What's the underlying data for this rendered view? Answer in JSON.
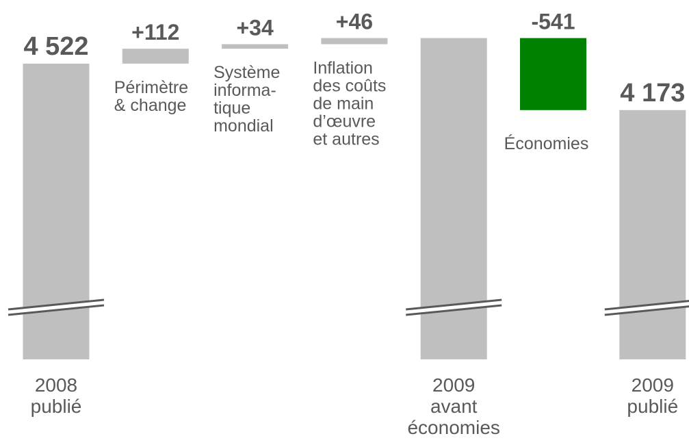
{
  "chart_data": {
    "type": "waterfall",
    "categories": [
      [
        "2008",
        "publié"
      ],
      [
        "Périmètre",
        "& change"
      ],
      [
        "Système",
        "informa-",
        "tique",
        "mondial"
      ],
      [
        "Inflation",
        "des coûts",
        "de main",
        "d’œuvre",
        "et autres"
      ],
      [
        "2009",
        "avant",
        "économies"
      ],
      [
        "Économies"
      ],
      [
        "2009",
        "publié"
      ]
    ],
    "values": [
      4522,
      112,
      34,
      46,
      4714,
      -541,
      4173
    ],
    "value_labels": [
      "4 522",
      "+112",
      "+34",
      "+46",
      null,
      "-541",
      "4 173"
    ],
    "total_bars": [
      true,
      false,
      false,
      false,
      true,
      false,
      true
    ],
    "colors": [
      "#bfbfbf",
      "#bfbfbf",
      "#bfbfbf",
      "#bfbfbf",
      "#bfbfbf",
      "#008000",
      "#bfbfbf"
    ],
    "ylim": [
      2300,
      5000
    ],
    "axis_break": true
  }
}
